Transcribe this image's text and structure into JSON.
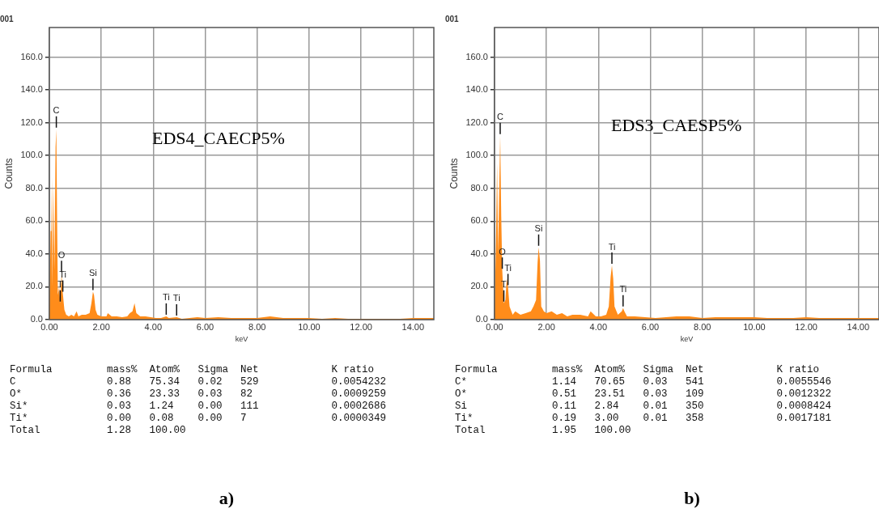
{
  "chart_data": [
    {
      "type": "area",
      "title": "001",
      "xlabel": "keV",
      "ylabel": "Counts",
      "color": "#ff8c1a",
      "grid": true,
      "xlim": [
        0,
        14.8
      ],
      "ylim": [
        0,
        178
      ],
      "xticks": [
        {
          "value": 0,
          "label": "0.00"
        },
        {
          "value": 2,
          "label": "2.00"
        },
        {
          "value": 4,
          "label": "4.00"
        },
        {
          "value": 6,
          "label": "6.00"
        },
        {
          "value": 8,
          "label": "8.00"
        },
        {
          "value": 10,
          "label": "10.00"
        },
        {
          "value": 12,
          "label": "12.00"
        },
        {
          "value": 14,
          "label": "14.00"
        }
      ],
      "yticks": [
        {
          "value": 0,
          "label": "0.0"
        },
        {
          "value": 20,
          "label": "20.0"
        },
        {
          "value": 40,
          "label": "40.0"
        },
        {
          "value": 60,
          "label": "60.0"
        },
        {
          "value": 80,
          "label": "80.0"
        },
        {
          "value": 100,
          "label": "100.0"
        },
        {
          "value": 120,
          "label": "120.0"
        },
        {
          "value": 140,
          "label": "140.0"
        },
        {
          "value": 160,
          "label": "160.0"
        }
      ],
      "x": [
        0,
        0.05,
        0.08,
        0.1,
        0.12,
        0.16,
        0.2,
        0.24,
        0.27,
        0.3,
        0.33,
        0.38,
        0.42,
        0.47,
        0.52,
        0.58,
        0.65,
        0.75,
        0.85,
        0.95,
        1.05,
        1.12,
        1.25,
        1.4,
        1.55,
        1.62,
        1.68,
        1.72,
        1.78,
        1.85,
        2,
        2.2,
        2.25,
        2.4,
        2.6,
        2.8,
        3,
        3.1,
        3.2,
        3.28,
        3.35,
        3.5,
        3.7,
        3.9,
        4.1,
        4.3,
        4.5,
        4.6,
        4.9,
        5.1,
        5.4,
        5.7,
        6,
        6.5,
        7,
        7.5,
        8,
        8.5,
        9,
        9.5,
        10,
        10.5,
        11,
        11.5,
        12,
        12.5,
        13,
        13.5,
        14,
        14.5,
        14.8
      ],
      "values": [
        0,
        54,
        54,
        87,
        20,
        81,
        30,
        105,
        116,
        60,
        15,
        20,
        10,
        28,
        16,
        6,
        3,
        2,
        3,
        2,
        5,
        2,
        3,
        3,
        4,
        10,
        17,
        15,
        6,
        3,
        2,
        2,
        4,
        2,
        2,
        1.5,
        2,
        4,
        5,
        10,
        4,
        2,
        2,
        1.5,
        1,
        1,
        2,
        1,
        1.5,
        0.5,
        1,
        1.5,
        1,
        1.5,
        1,
        1,
        1,
        2,
        1,
        1,
        1,
        0.5,
        1,
        0.5,
        0.5,
        0.5,
        0.5,
        0.5,
        1,
        1,
        1
      ],
      "annotations": [
        "EDS4_CAECP5%",
        "Formula         mass%  Atom%   Sigma  Net            K ratio",
        "C               0.88   75.34   0.02   529            0.0054232",
        "O*              0.36   23.33   0.03   82             0.0009259",
        "Si*             0.03   1.24    0.00   111            0.0002686",
        "Ti*             0.00   0.08    0.00   7              0.0000349",
        "Total           1.28   100.00",
        "a)",
        {
          "text": "C",
          "x": 0.27,
          "y": 116
        },
        {
          "text": "O",
          "x": 0.47,
          "y": 28
        },
        {
          "text": "Ti",
          "x": 0.52,
          "y": 16
        },
        {
          "text": "T",
          "x": 0.42,
          "y": 10
        },
        {
          "text": "Si",
          "x": 1.68,
          "y": 17
        },
        {
          "text": "Ti",
          "x": 4.5,
          "y": 2
        },
        {
          "text": "Ti",
          "x": 4.9,
          "y": 1.5
        }
      ]
    },
    {
      "type": "area",
      "title": "001",
      "xlabel": "keV",
      "ylabel": "Counts",
      "color": "#ff8c1a",
      "grid": true,
      "xlim": [
        0,
        14.8
      ],
      "ylim": [
        0,
        178
      ],
      "xticks": [
        {
          "value": 0,
          "label": "0.00"
        },
        {
          "value": 2,
          "label": "2.00"
        },
        {
          "value": 4,
          "label": "4.00"
        },
        {
          "value": 6,
          "label": "6.00"
        },
        {
          "value": 8,
          "label": "8.00"
        },
        {
          "value": 10,
          "label": "10.00"
        },
        {
          "value": 12,
          "label": "12.00"
        },
        {
          "value": 14,
          "label": "14.00"
        }
      ],
      "yticks": [
        {
          "value": 0,
          "label": "0.0"
        },
        {
          "value": 20,
          "label": "20.0"
        },
        {
          "value": 40,
          "label": "40.0"
        },
        {
          "value": 60,
          "label": "60.0"
        },
        {
          "value": 80,
          "label": "80.0"
        },
        {
          "value": 100,
          "label": "100.0"
        },
        {
          "value": 120,
          "label": "120.0"
        },
        {
          "value": 140,
          "label": "140.0"
        },
        {
          "value": 160,
          "label": "160.0"
        }
      ],
      "x": [
        0,
        0.07,
        0.1,
        0.14,
        0.18,
        0.22,
        0.26,
        0.3,
        0.36,
        0.42,
        0.47,
        0.52,
        0.58,
        0.7,
        0.8,
        1,
        1.2,
        1.4,
        1.5,
        1.6,
        1.66,
        1.7,
        1.75,
        1.8,
        1.9,
        2,
        2.2,
        2.4,
        2.6,
        2.8,
        3,
        3.3,
        3.6,
        3.7,
        3.9,
        4.1,
        4.3,
        4.4,
        4.47,
        4.52,
        4.57,
        4.62,
        4.75,
        4.9,
        4.95,
        5,
        5.1,
        5.4,
        5.8,
        6.2,
        6.6,
        7,
        7.5,
        8,
        8.5,
        9,
        9.5,
        10,
        10.5,
        11,
        11.5,
        12,
        12.5,
        13,
        13.5,
        14,
        14.5,
        14.8
      ],
      "values": [
        0,
        60,
        95,
        40,
        78,
        112,
        63,
        30,
        10,
        12,
        25,
        20,
        8,
        3,
        5,
        3,
        4,
        5,
        8,
        12,
        35,
        44,
        36,
        8,
        5,
        4,
        5,
        3,
        4,
        2,
        3,
        3,
        2,
        5,
        2,
        2,
        3,
        8,
        26,
        33,
        25,
        8,
        3,
        5,
        7,
        5,
        2,
        2,
        1.5,
        1,
        1.5,
        2,
        2,
        1,
        1.5,
        1.5,
        1.5,
        1.5,
        1,
        1,
        1,
        1.5,
        1,
        1,
        1,
        1,
        1,
        1
      ],
      "annotations": [
        "EDS3_CAESP5%",
        "Formula         mass%  Atom%   Sigma  Net            K ratio",
        "C*              1.14   70.65   0.03   541            0.0055546",
        "O*              0.51   23.51   0.03   109            0.0012322",
        "Si              0.11   2.84    0.01   350            0.0008424",
        "Ti*             0.19   3.00    0.01   358            0.0017181",
        "Total           1.95   100.00",
        "b)",
        {
          "text": "C",
          "x": 0.22,
          "y": 112
        },
        {
          "text": "O",
          "x": 0.3,
          "y": 30
        },
        {
          "text": "Ti",
          "x": 0.52,
          "y": 20
        },
        {
          "text": "T",
          "x": 0.36,
          "y": 10
        },
        {
          "text": "Si",
          "x": 1.7,
          "y": 44
        },
        {
          "text": "Ti",
          "x": 4.52,
          "y": 33
        },
        {
          "text": "Ti",
          "x": 4.95,
          "y": 7
        }
      ]
    }
  ]
}
